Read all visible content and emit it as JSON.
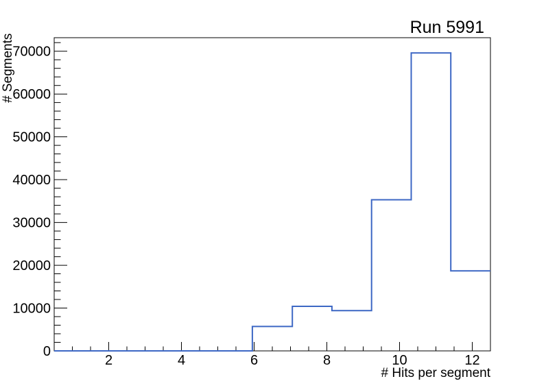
{
  "window": {
    "background": "#ffffff"
  },
  "chart_data": {
    "type": "histogram-step",
    "title": "Run 5991",
    "xlabel": "# Hits per segment",
    "ylabel": "# Segments",
    "xlim": [
      0.5,
      12.5
    ],
    "ylim": [
      0,
      73150
    ],
    "bin_edges": [
      0.5,
      1.59,
      2.68,
      3.77,
      4.86,
      5.95,
      7.05,
      8.14,
      9.23,
      10.32,
      11.41,
      12.5
    ],
    "values": [
      0,
      0,
      0,
      0,
      0,
      5700,
      10400,
      9400,
      35300,
      69600,
      18700
    ],
    "x_major_ticks": [
      2,
      4,
      6,
      8,
      10,
      12
    ],
    "x_tick_labels": [
      "2",
      "4",
      "6",
      "8",
      "10",
      "12"
    ],
    "x_minor_step": 0.5,
    "y_major_step": 10000,
    "y_minor_step": 2000,
    "y_tick_labels": [
      "0",
      "10000",
      "20000",
      "30000",
      "40000",
      "50000",
      "60000",
      "70000"
    ],
    "line_color": "#3c67c4",
    "axis_color": "#000000",
    "grid": false,
    "legend": null
  }
}
